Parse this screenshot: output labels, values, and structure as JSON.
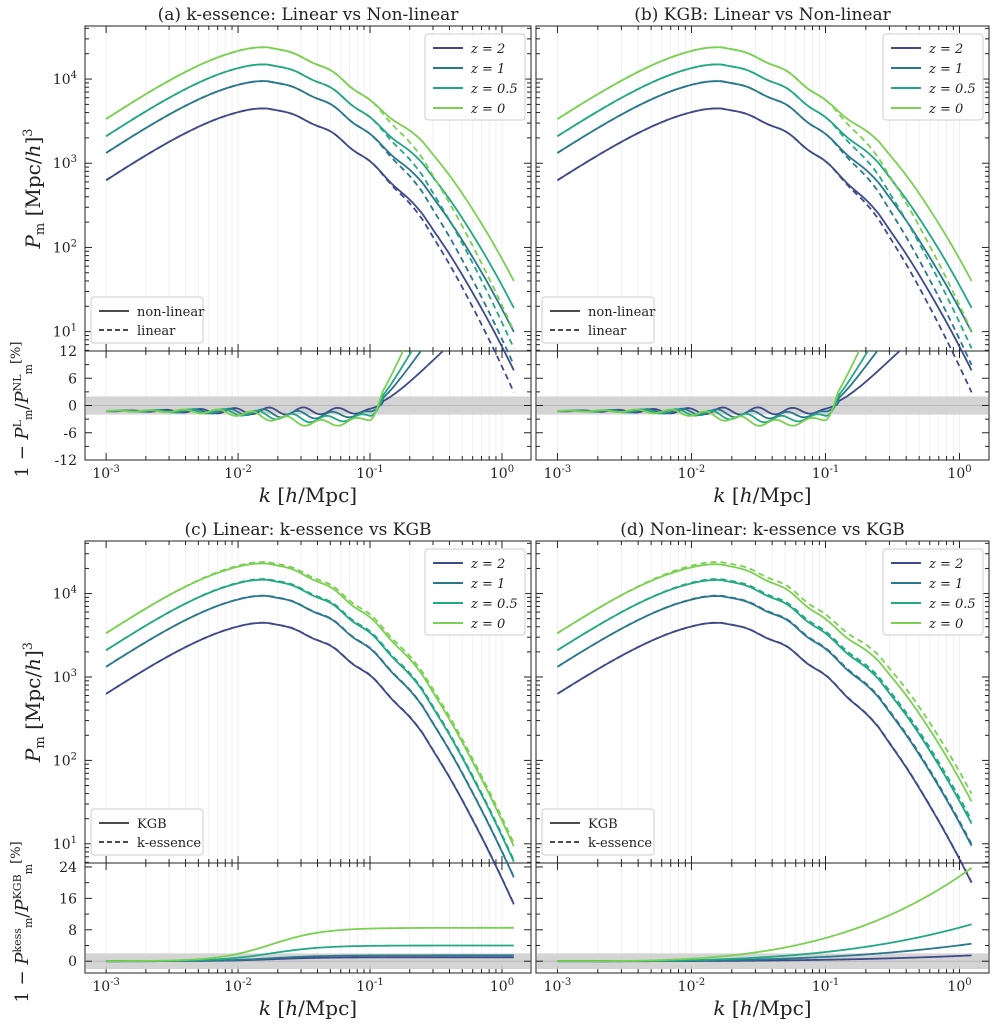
{
  "colors": {
    "z2": "#3f4a8a",
    "z1": "#2a788e",
    "z05": "#22a884",
    "z0": "#7ad151",
    "axis": "#222222"
  },
  "shared": {
    "redshift_legend": [
      "z = 2",
      "z = 1",
      "z = 0.5",
      "z = 0"
    ],
    "x_label": "k [h/Mpc]",
    "y_label_top": "P_m [Mpc/h]^3",
    "x_ticks": [
      "10^-3",
      "10^-2",
      "10^-1",
      "10^0"
    ],
    "y_ticks_top": [
      "10^1",
      "10^2",
      "10^3",
      "10^4"
    ]
  },
  "chart_data": [
    {
      "type": "line",
      "title": "(a) k-essence: Linear vs Non-linear",
      "xlabel": "k [h/Mpc]",
      "ylabel": "P_m [Mpc/h]^3",
      "xscale": "log",
      "yscale": "log",
      "style_legend": [
        "non-linear",
        "linear"
      ],
      "series": [
        {
          "name": "z = 2",
          "peak": 4500,
          "boost": 1.9
        },
        {
          "name": "z = 1",
          "peak": 9500,
          "boost": 2.6
        },
        {
          "name": "z = 0.5",
          "peak": 15000,
          "boost": 3.2
        },
        {
          "name": "z = 0",
          "peak": 24000,
          "boost": 4.2
        }
      ],
      "ratio": {
        "ylabel": "1 - P_m^L / P_m^NL [%]",
        "ylim": [
          -12,
          12
        ],
        "yticks": [
          "12",
          "6",
          "0",
          "-6",
          "-12"
        ],
        "highlight_band": [
          -2,
          2
        ]
      }
    },
    {
      "type": "line",
      "title": "(b) KGB: Linear vs Non-linear",
      "xlabel": "k [h/Mpc]",
      "ylabel": "P_m [Mpc/h]^3",
      "xscale": "log",
      "yscale": "log",
      "style_legend": [
        "non-linear",
        "linear"
      ],
      "series": [
        {
          "name": "z = 2",
          "peak": 4500,
          "boost": 1.9
        },
        {
          "name": "z = 1",
          "peak": 9500,
          "boost": 2.6
        },
        {
          "name": "z = 0.5",
          "peak": 15000,
          "boost": 3.2
        },
        {
          "name": "z = 0",
          "peak": 24000,
          "boost": 4.2
        }
      ],
      "ratio": {
        "ylim": [
          -12,
          12
        ],
        "highlight_band": [
          -2,
          2
        ]
      }
    },
    {
      "type": "line",
      "title": "(c) Linear: k-essence vs KGB",
      "xlabel": "k [h/Mpc]",
      "ylabel": "P_m [Mpc/h]^3",
      "xscale": "log",
      "yscale": "log",
      "style_legend": [
        "KGB",
        "k-essence"
      ],
      "series": [
        {
          "name": "z = 2",
          "peak": 4500,
          "end_diff": 1.0
        },
        {
          "name": "z = 1",
          "peak": 9500,
          "end_diff": 1.5
        },
        {
          "name": "z = 0.5",
          "peak": 15000,
          "end_diff": 4.0
        },
        {
          "name": "z = 0",
          "peak": 24500,
          "end_diff": 8.5
        }
      ],
      "ratio": {
        "ylabel": "1 - P_m^kess / P_m^KGB [%]",
        "ylim": [
          -3,
          25
        ],
        "yticks": [
          "24",
          "16",
          "8",
          "0"
        ],
        "highlight_band": [
          -2,
          2
        ]
      }
    },
    {
      "type": "line",
      "title": "(d) Non-linear: k-essence vs KGB",
      "xlabel": "k [h/Mpc]",
      "ylabel": "P_m [Mpc/h]^3",
      "xscale": "log",
      "yscale": "log",
      "style_legend": [
        "KGB",
        "k-essence"
      ],
      "series": [
        {
          "name": "z = 2",
          "peak": 4500,
          "end_diff": 1.5
        },
        {
          "name": "z = 1",
          "peak": 9500,
          "end_diff": 4.5
        },
        {
          "name": "z = 0.5",
          "peak": 15000,
          "end_diff": 9.5
        },
        {
          "name": "z = 0",
          "peak": 24500,
          "end_diff": 24
        }
      ],
      "ratio": {
        "ylim": [
          -3,
          25
        ],
        "highlight_band": [
          -2,
          2
        ]
      }
    }
  ]
}
